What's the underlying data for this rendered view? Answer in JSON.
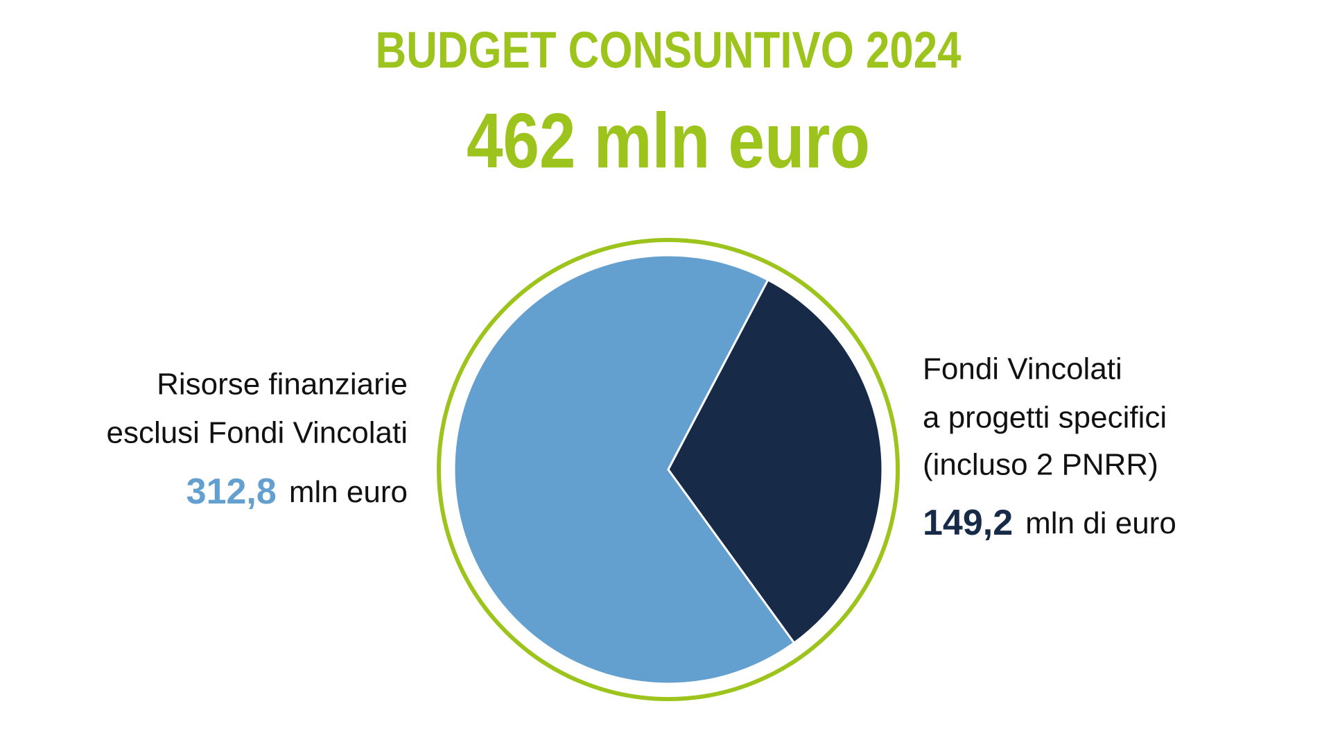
{
  "chart_data": {
    "type": "pie",
    "title": "BUDGET CONSUNTIVO 2024",
    "subtitle": "462 mln euro",
    "categories": [
      [
        "Risorse finanziarie",
        "esclusi Fondi Vincolati"
      ],
      [
        "Fondi Vincolati",
        "a progetti specifici",
        "(incluso 2 PNRR)"
      ]
    ],
    "values": [
      312.8,
      149.2
    ],
    "value_labels": [
      "312,8",
      "149,2"
    ],
    "units": [
      "mln euro",
      "mln di euro"
    ],
    "colors": [
      "#639fcf",
      "#172b48"
    ],
    "ring_color": "#9dc41c"
  }
}
